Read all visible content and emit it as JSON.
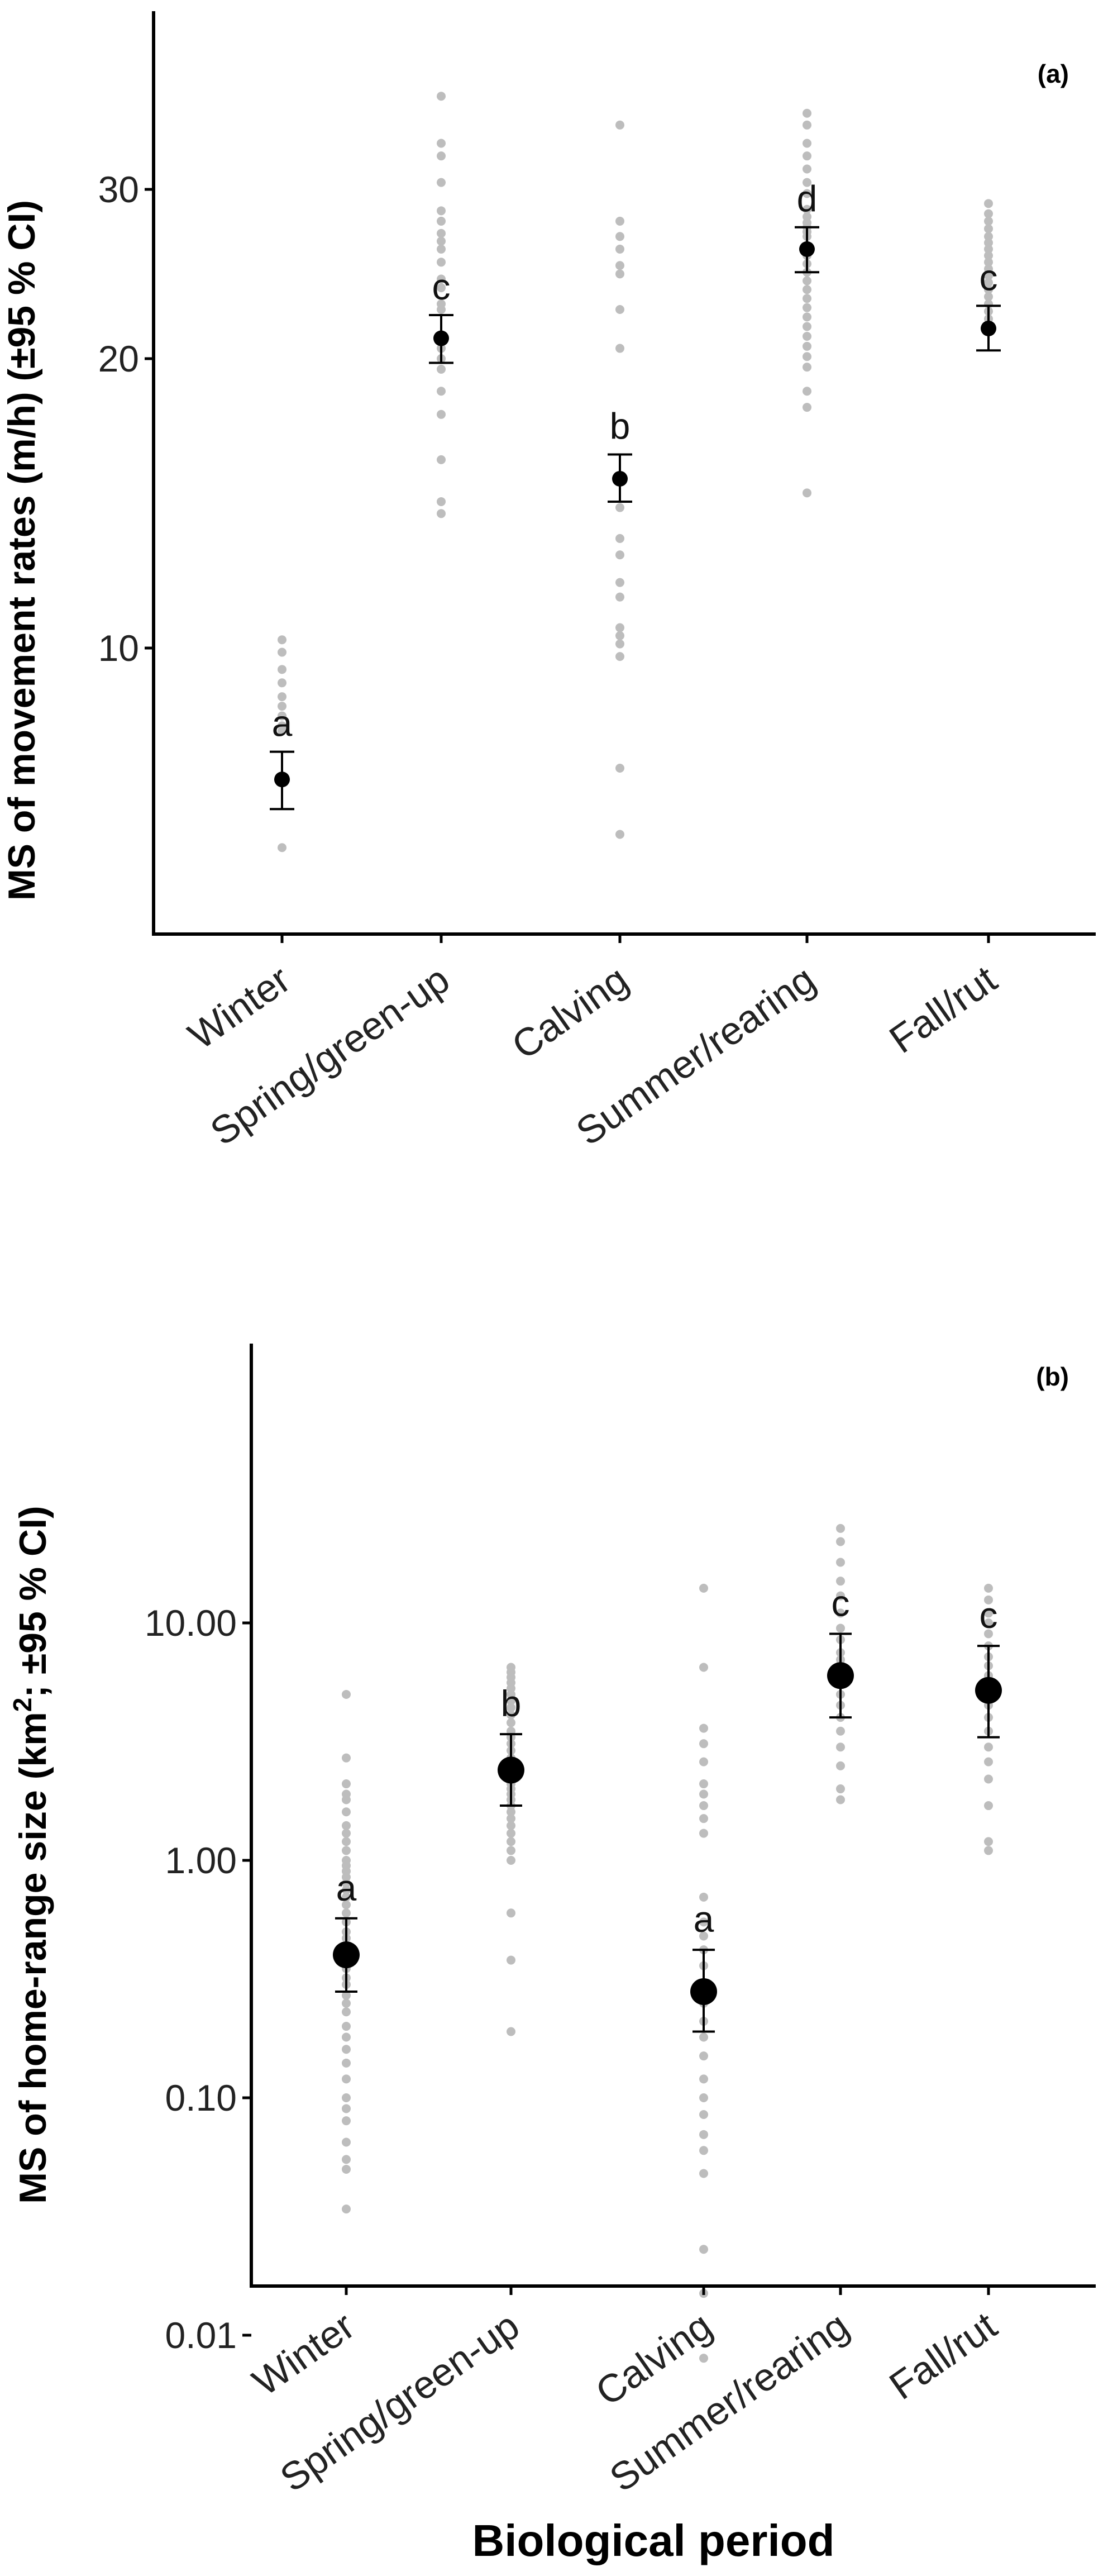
{
  "chart_data": [
    {
      "type": "scatter",
      "panel_label": "(a)",
      "ylabel": "MS of movement rates (m/h) (±95 % CI)",
      "xlabel": "",
      "y_scale": "log",
      "ylim": [
        5.7,
        40
      ],
      "yticks": [
        10,
        20,
        30
      ],
      "ytick_labels": [
        "10",
        "20",
        "30"
      ],
      "categories": [
        "Winter",
        "Spring/green-up",
        "Calving",
        "Summer/rearing",
        "Fall/rut"
      ],
      "means": [
        7.3,
        21.0,
        15.0,
        26.0,
        21.5
      ],
      "ci_low": [
        6.8,
        19.8,
        14.2,
        24.6,
        20.4
      ],
      "ci_high": [
        7.8,
        22.2,
        15.9,
        27.4,
        22.7
      ],
      "letters": [
        "a",
        "c",
        "b",
        "d",
        "c"
      ],
      "individuals": [
        [
          10.2,
          9.9,
          9.5,
          9.2,
          8.9,
          8.7,
          8.5,
          8.3,
          8.2,
          6.2
        ],
        [
          37.5,
          33.5,
          32.5,
          30.5,
          28.5,
          27.8,
          27.0,
          26.5,
          26.0,
          25.2,
          24.2,
          23.7,
          22.8,
          22.5,
          20.5,
          20.0,
          19.5,
          18.5,
          17.5,
          15.7,
          14.2,
          13.8
        ],
        [
          35.0,
          27.8,
          26.8,
          26.0,
          25.0,
          24.5,
          22.5,
          20.5,
          14.0,
          13.0,
          12.5,
          11.7,
          11.3,
          10.5,
          10.3,
          10.1,
          9.8,
          7.5,
          6.4
        ],
        [
          36.0,
          35.0,
          33.5,
          32.5,
          31.5,
          30.5,
          29.7,
          28.6,
          28.1,
          27.7,
          27.4,
          27.1,
          26.8,
          26.2,
          25.6,
          25.1,
          24.6,
          24.1,
          23.6,
          23.1,
          22.6,
          22.1,
          21.6,
          21.1,
          20.6,
          20.1,
          19.6,
          18.5,
          17.8,
          14.5
        ],
        [
          29.0,
          28.3,
          27.8,
          27.3,
          26.8,
          26.4,
          26.0,
          25.6,
          25.2,
          24.8,
          24.4,
          24.0,
          23.6,
          23.2,
          22.8,
          22.4,
          22.0
        ]
      ]
    },
    {
      "type": "scatter",
      "panel_label": "(b)",
      "ylabel_main": "MS of home-range size (km",
      "ylabel_sup": "2",
      "ylabel_end": "; ±95 % CI)",
      "xlabel": "Biological period",
      "y_scale": "log",
      "ylim": [
        0.0055,
        35
      ],
      "yticks": [
        0.01,
        0.1,
        1,
        10
      ],
      "ytick_labels": [
        "0.01",
        "0.10",
        "1.00",
        "10.00"
      ],
      "categories": [
        "Winter",
        "Spring/green-up",
        "Calving",
        "Summer/rearing",
        "Fall/rut"
      ],
      "means": [
        0.4,
        2.4,
        0.28,
        6.0,
        5.2
      ],
      "ci_low": [
        0.28,
        1.7,
        0.19,
        4.0,
        3.3
      ],
      "ci_high": [
        0.57,
        3.4,
        0.42,
        9.0,
        8.0
      ],
      "letters": [
        "a",
        "b",
        "a",
        "c",
        "c"
      ],
      "individuals": [
        [
          5.0,
          2.7,
          2.1,
          1.9,
          1.8,
          1.6,
          1.4,
          1.3,
          1.2,
          1.1,
          1.0,
          0.95,
          0.9,
          0.85,
          0.8,
          0.75,
          0.7,
          0.65,
          0.6,
          0.55,
          0.5,
          0.47,
          0.44,
          0.41,
          0.38,
          0.35,
          0.32,
          0.3,
          0.27,
          0.25,
          0.23,
          0.2,
          0.18,
          0.16,
          0.14,
          0.12,
          0.1,
          0.09,
          0.08,
          0.065,
          0.055,
          0.05,
          0.034
        ],
        [
          6.5,
          6.2,
          5.9,
          5.6,
          5.3,
          5.0,
          4.7,
          4.4,
          4.1,
          3.8,
          3.5,
          3.3,
          3.1,
          2.9,
          2.7,
          2.5,
          2.3,
          2.1,
          2.0,
          1.9,
          1.8,
          1.7,
          1.6,
          1.5,
          1.4,
          1.3,
          1.2,
          1.1,
          1.0,
          0.6,
          0.38,
          0.19
        ],
        [
          14.0,
          6.5,
          3.6,
          3.1,
          2.6,
          2.1,
          1.9,
          1.7,
          1.5,
          1.3,
          0.7,
          0.55,
          0.48,
          0.42,
          0.36,
          0.3,
          0.25,
          0.21,
          0.18,
          0.15,
          0.12,
          0.1,
          0.085,
          0.07,
          0.06,
          0.048,
          0.023,
          0.015,
          0.008
        ],
        [
          25.0,
          22.0,
          18.0,
          15.0,
          13.0,
          11.0,
          9.5,
          8.5,
          7.5,
          7.0,
          6.5,
          6.0,
          5.5,
          5.0,
          4.5,
          4.0,
          3.5,
          3.0,
          2.5,
          2.0,
          1.8
        ],
        [
          14.0,
          12.5,
          11.0,
          10.0,
          9.0,
          8.0,
          7.2,
          6.6,
          6.0,
          5.5,
          5.0,
          4.5,
          4.0,
          3.5,
          3.0,
          2.6,
          2.2,
          1.7,
          1.2,
          1.1
        ]
      ]
    }
  ]
}
